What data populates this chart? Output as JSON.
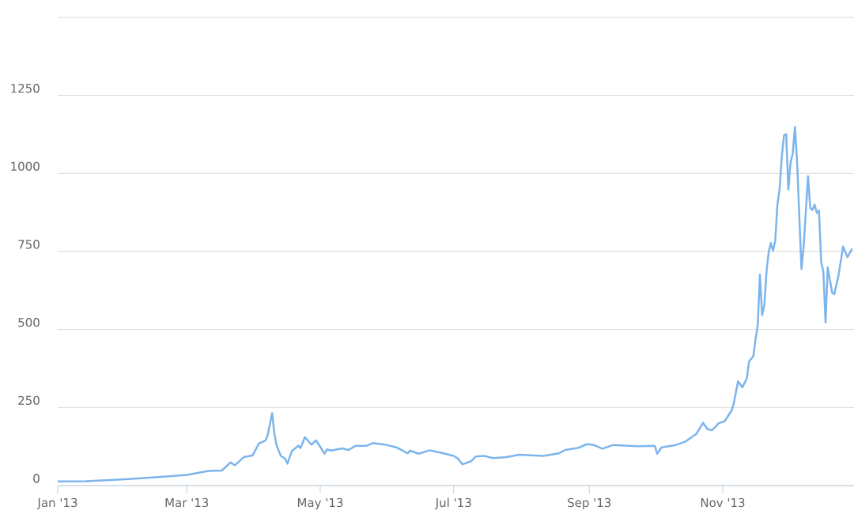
{
  "chart_data": {
    "type": "line",
    "color": "#7cb5ec",
    "line_style": "solid",
    "grid": "y",
    "xlim": [
      "2013-01-01",
      "2013-12-31"
    ],
    "ylim": [
      0,
      1500
    ],
    "xticks": [
      {
        "value": "2013-01-01",
        "label": "Jan '13"
      },
      {
        "value": "2013-03-01",
        "label": "Mar '13"
      },
      {
        "value": "2013-05-01",
        "label": "May '13"
      },
      {
        "value": "2013-07-01",
        "label": "Jul '13"
      },
      {
        "value": "2013-09-01",
        "label": "Sep '13"
      },
      {
        "value": "2013-11-01",
        "label": "Nov '13"
      }
    ],
    "yticks": [
      0,
      250,
      500,
      750,
      1000,
      1250,
      {
        "value": 1500,
        "label": null
      }
    ],
    "x": [
      "2013-01-01",
      "2013-01-14",
      "2013-02-01",
      "2013-02-16",
      "2013-03-01",
      "2013-03-07",
      "2013-03-11",
      "2013-03-17",
      "2013-03-21",
      "2013-03-23",
      "2013-03-27",
      "2013-03-31",
      "2013-04-03",
      "2013-04-06",
      "2013-04-07",
      "2013-04-09",
      "2013-04-10",
      "2013-04-11",
      "2013-04-13",
      "2013-04-15",
      "2013-04-16",
      "2013-04-18",
      "2013-04-21",
      "2013-04-22",
      "2013-04-24",
      "2013-04-27",
      "2013-04-29",
      "2013-04-30",
      "2013-05-03",
      "2013-05-04",
      "2013-05-06",
      "2013-05-11",
      "2013-05-14",
      "2013-05-17",
      "2013-05-22",
      "2013-05-25",
      "2013-05-30",
      "2013-06-05",
      "2013-06-10",
      "2013-06-11",
      "2013-06-15",
      "2013-06-20",
      "2013-06-26",
      "2013-07-01",
      "2013-07-03",
      "2013-07-05",
      "2013-07-09",
      "2013-07-11",
      "2013-07-15",
      "2013-07-19",
      "2013-07-25",
      "2013-07-31",
      "2013-08-11",
      "2013-08-18",
      "2013-08-21",
      "2013-08-27",
      "2013-08-31",
      "2013-09-03",
      "2013-09-07",
      "2013-09-12",
      "2013-09-23",
      "2013-10-01",
      "2013-10-02",
      "2013-10-04",
      "2013-10-10",
      "2013-10-15",
      "2013-10-20",
      "2013-10-23",
      "2013-10-25",
      "2013-10-27",
      "2013-10-29",
      "2013-10-30",
      "2013-11-02",
      "2013-11-05",
      "2013-11-06",
      "2013-11-08",
      "2013-11-10",
      "2013-11-12",
      "2013-11-13",
      "2013-11-15",
      "2013-11-16",
      "2013-11-17",
      "2013-11-18",
      "2013-11-19",
      "2013-11-20",
      "2013-11-21",
      "2013-11-22",
      "2013-11-23",
      "2013-11-24",
      "2013-11-25",
      "2013-11-26",
      "2013-11-27",
      "2013-11-28",
      "2013-11-29",
      "2013-11-30",
      "2013-12-01",
      "2013-12-02",
      "2013-12-03",
      "2013-12-04",
      "2013-12-05",
      "2013-12-07",
      "2013-12-08",
      "2013-12-10",
      "2013-12-11",
      "2013-12-12",
      "2013-12-13",
      "2013-12-14",
      "2013-12-15",
      "2013-12-16",
      "2013-12-17",
      "2013-12-18",
      "2013-12-19",
      "2013-12-21",
      "2013-12-22",
      "2013-12-24",
      "2013-12-26",
      "2013-12-28",
      "2013-12-30"
    ],
    "values": [
      13,
      14,
      20,
      27,
      34,
      42,
      47,
      48,
      74,
      65,
      91,
      96,
      135,
      144,
      162,
      232,
      170,
      130,
      95,
      86,
      70,
      110,
      128,
      120,
      155,
      131,
      145,
      135,
      102,
      116,
      112,
      119,
      114,
      127,
      127,
      136,
      132,
      122,
      103,
      112,
      102,
      113,
      104,
      95,
      86,
      68,
      78,
      93,
      95,
      88,
      91,
      99,
      95,
      103,
      114,
      121,
      133,
      130,
      118,
      130,
      126,
      127,
      102,
      122,
      129,
      141,
      166,
      201,
      181,
      177,
      191,
      199,
      207,
      240,
      262,
      334,
      315,
      343,
      397,
      415,
      469,
      514,
      676,
      546,
      577,
      685,
      748,
      777,
      753,
      784,
      901,
      951,
      1054,
      1122,
      1126,
      948,
      1036,
      1063,
      1149,
      1036,
      694,
      766,
      991,
      890,
      883,
      900,
      874,
      881,
      717,
      685,
      523,
      699,
      618,
      613,
      676,
      766,
      732,
      757
    ]
  }
}
